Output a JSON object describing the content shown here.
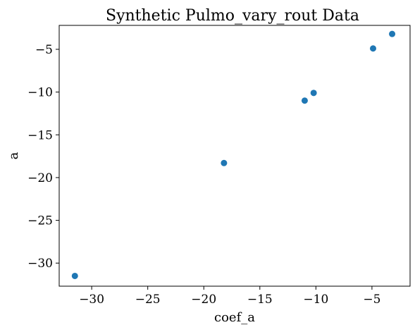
{
  "chart_data": {
    "type": "scatter",
    "title": "Synthetic Pulmo_vary_rout Data",
    "xlabel": "coef_a",
    "ylabel": "a",
    "xlim": [
      -32.9,
      -1.6
    ],
    "ylim": [
      -32.7,
      -2.2
    ],
    "xticks": [
      -30,
      -25,
      -20,
      -15,
      -10,
      -5
    ],
    "yticks": [
      -5,
      -10,
      -15,
      -20,
      -25,
      -30
    ],
    "xtick_labels": [
      "−30",
      "−25",
      "−20",
      "−15",
      "−10",
      "−5"
    ],
    "ytick_labels": [
      "−5",
      "−10",
      "−15",
      "−20",
      "−25",
      "−30"
    ],
    "marker_color": "#1f77b4",
    "grid": false,
    "points": [
      {
        "x": -31.5,
        "y": -31.5
      },
      {
        "x": -18.2,
        "y": -18.3
      },
      {
        "x": -11.0,
        "y": -11.0
      },
      {
        "x": -10.2,
        "y": -10.1
      },
      {
        "x": -4.9,
        "y": -4.9
      },
      {
        "x": -3.2,
        "y": -3.2
      }
    ]
  }
}
